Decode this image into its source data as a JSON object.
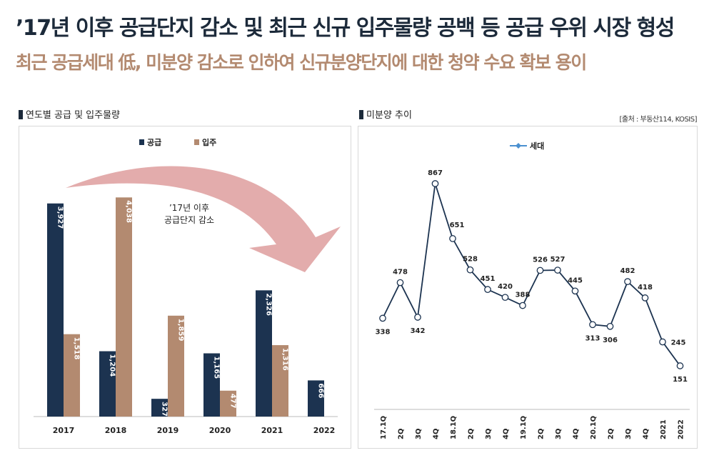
{
  "header": {
    "title": "’17년 이후 공급단지 감소 및 최근 신규 입주물량 공백 등 공급 우위 시장 형성",
    "subtitle": "최근 공급세대 低, 미분양 감소로 인하여 신규분양단지에 대한 청약 수요 확보 용이"
  },
  "left_panel": {
    "title": "연도별 공급 및 입주물량"
  },
  "right_panel": {
    "title": "미분양 추이",
    "source": "[출처 : 부동산114, KOSIS]"
  },
  "colors": {
    "supply": "#1c3350",
    "movein": "#b38a70",
    "line": "#1c3350",
    "arrow": "#e0a3a3"
  },
  "chart_data": [
    {
      "type": "bar",
      "categories": [
        "2017",
        "2018",
        "2019",
        "2020",
        "2021",
        "2022"
      ],
      "series": [
        {
          "name": "공급",
          "values": [
            3927,
            1204,
            327,
            1165,
            2326,
            666
          ]
        },
        {
          "name": "입주",
          "values": [
            1518,
            4038,
            1859,
            477,
            1316,
            null
          ]
        }
      ],
      "data_labels": {
        "공급": [
          "3,927",
          "1,204",
          "327",
          "1,165",
          "2,326",
          "666"
        ],
        "입주": [
          "1,518",
          "4,038",
          "1,859",
          "477",
          "1,316",
          ""
        ]
      },
      "annotation": [
        "’17년 이후",
        "공급단지 감소"
      ],
      "legend": "top-center",
      "ylim": [
        0,
        4200
      ]
    },
    {
      "type": "line",
      "x": [
        "17.1Q",
        "2Q",
        "3Q",
        "4Q",
        "18.1Q",
        "2Q",
        "3Q",
        "4Q",
        "19.1Q",
        "2Q",
        "3Q",
        "4Q",
        "20.1Q",
        "2Q",
        "3Q",
        "4Q",
        "2021",
        "2022"
      ],
      "series": [
        {
          "name": "세대",
          "values": [
            338,
            478,
            342,
            867,
            651,
            528,
            451,
            420,
            388,
            526,
            527,
            445,
            313,
            306,
            482,
            418,
            245,
            151
          ]
        }
      ],
      "legend": "top-center",
      "ylim": [
        0,
        950
      ]
    }
  ]
}
